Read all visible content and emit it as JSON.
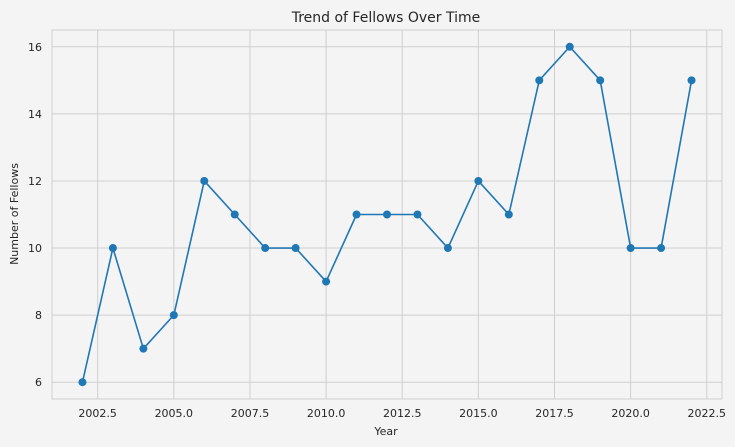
{
  "chart_data": {
    "type": "line",
    "title": "Trend of Fellows Over Time",
    "xlabel": "Year",
    "ylabel": "Number of Fellows",
    "xlim": [
      2001.0,
      2023.0
    ],
    "ylim": [
      5.5,
      16.5
    ],
    "x_ticks": [
      2002.5,
      2005.0,
      2007.5,
      2010.0,
      2012.5,
      2015.0,
      2017.5,
      2020.0,
      2022.5
    ],
    "x_tick_labels": [
      "2002.5",
      "2005.0",
      "2007.5",
      "2010.0",
      "2012.5",
      "2015.0",
      "2017.5",
      "2020.0",
      "2022.5"
    ],
    "y_ticks": [
      6,
      8,
      10,
      12,
      14,
      16
    ],
    "y_tick_labels": [
      "6",
      "8",
      "10",
      "12",
      "14",
      "16"
    ],
    "grid": true,
    "series": [
      {
        "color": "#1f77b4",
        "marker": "circle",
        "x": [
          2002,
          2003,
          2004,
          2005,
          2006,
          2007,
          2008,
          2009,
          2010,
          2011,
          2012,
          2013,
          2014,
          2015,
          2016,
          2017,
          2018,
          2019,
          2020,
          2021,
          2022
        ],
        "y": [
          6,
          10,
          7,
          8,
          12,
          11,
          10,
          10,
          9,
          11,
          11,
          11,
          10,
          12,
          11,
          15,
          16,
          15,
          10,
          10,
          15
        ]
      }
    ]
  }
}
